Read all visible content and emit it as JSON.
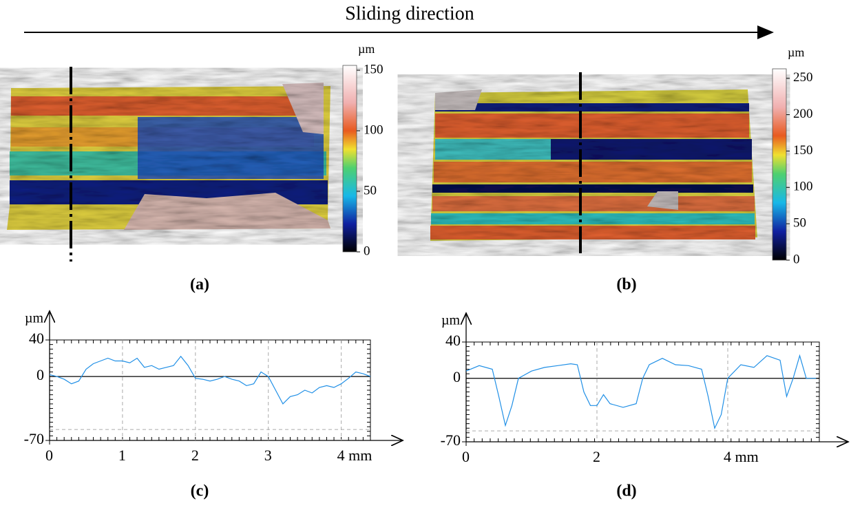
{
  "title": "Sliding direction",
  "panel_labels": [
    "(a)",
    "(b)",
    "(c)",
    "(d)"
  ],
  "colorbars": [
    {
      "unit": "µm",
      "lim": [
        0,
        154
      ],
      "ticks": [
        0,
        50,
        100,
        150
      ]
    },
    {
      "unit": "µm",
      "lim": [
        0,
        263
      ],
      "ticks": [
        0,
        50,
        100,
        150,
        200,
        250
      ]
    }
  ],
  "chart_data": [
    {
      "type": "line",
      "y_label": "µm",
      "color": "#1f8fe6",
      "xlim": [
        0,
        4.4
      ],
      "ylim": [
        -70,
        40
      ],
      "xticks": [
        0,
        1,
        2,
        3,
        {
          "value": 4,
          "label": "4 mm"
        }
      ],
      "yticks": [
        -70,
        0,
        40
      ],
      "reference_y": -58,
      "grid": true,
      "x": [
        0,
        0.1,
        0.2,
        0.3,
        0.4,
        0.5,
        0.6,
        0.7,
        0.8,
        0.9,
        1.0,
        1.1,
        1.2,
        1.3,
        1.4,
        1.5,
        1.6,
        1.7,
        1.8,
        1.9,
        2.0,
        2.1,
        2.2,
        2.3,
        2.4,
        2.5,
        2.6,
        2.7,
        2.8,
        2.9,
        3.0,
        3.1,
        3.2,
        3.3,
        3.4,
        3.5,
        3.6,
        3.7,
        3.8,
        3.9,
        4.0,
        4.1,
        4.2,
        4.3,
        4.4
      ],
      "values": [
        2,
        0,
        -3,
        -8,
        -5,
        8,
        14,
        17,
        20,
        17,
        17,
        15,
        20,
        10,
        12,
        8,
        10,
        12,
        22,
        12,
        -2,
        -3,
        -5,
        -3,
        0,
        -3,
        -5,
        -10,
        -8,
        5,
        0,
        -15,
        -30,
        -22,
        -20,
        -15,
        -18,
        -12,
        -10,
        -12,
        -8,
        -2,
        5,
        3,
        0
      ]
    },
    {
      "type": "line",
      "y_label": "µm",
      "color": "#1f8fe6",
      "xlim": [
        0,
        5.4
      ],
      "ylim": [
        -70,
        40
      ],
      "xticks": [
        0,
        2,
        {
          "value": 4,
          "label": "4 mm"
        }
      ],
      "yticks": [
        -70,
        0,
        40
      ],
      "reference_y": -58,
      "grid": true,
      "x": [
        0,
        0.2,
        0.4,
        0.5,
        0.6,
        0.7,
        0.8,
        1.0,
        1.2,
        1.4,
        1.6,
        1.7,
        1.8,
        1.9,
        2.0,
        2.1,
        2.2,
        2.4,
        2.6,
        2.7,
        2.8,
        3.0,
        3.2,
        3.4,
        3.6,
        3.7,
        3.8,
        3.9,
        4.0,
        4.2,
        4.4,
        4.6,
        4.8,
        4.9,
        5.0,
        5.1,
        5.2,
        5.35
      ],
      "values": [
        8,
        14,
        10,
        -20,
        -52,
        -30,
        0,
        8,
        12,
        14,
        16,
        15,
        -15,
        -30,
        -30,
        -18,
        -28,
        -32,
        -28,
        0,
        15,
        22,
        15,
        14,
        10,
        -20,
        -55,
        -40,
        0,
        15,
        12,
        25,
        20,
        -20,
        0,
        25,
        0,
        0
      ]
    }
  ]
}
